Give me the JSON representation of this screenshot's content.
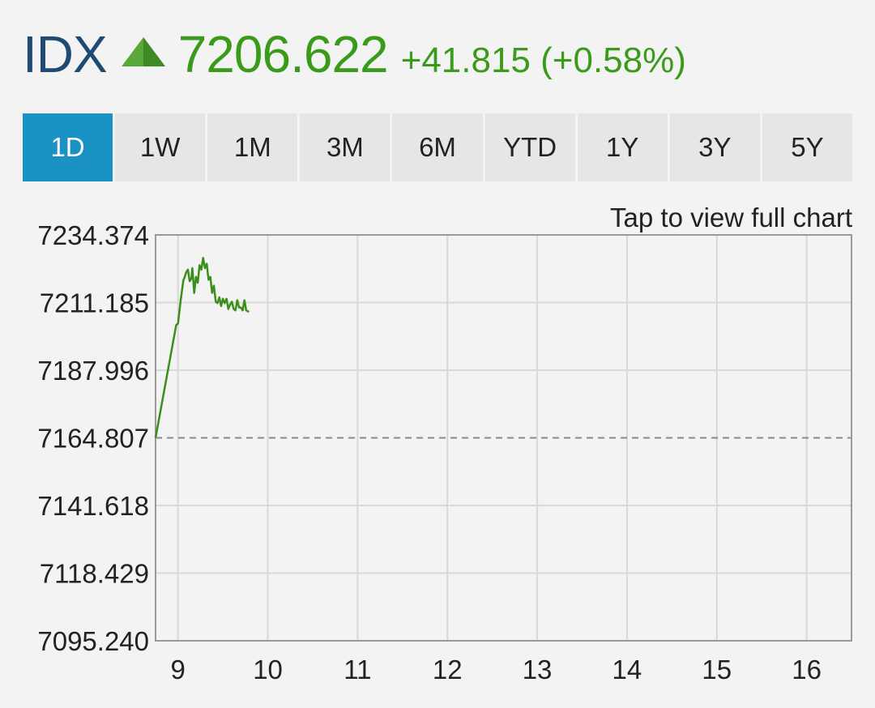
{
  "header": {
    "ticker": "IDX",
    "price": "7206.622",
    "change": "+41.815 (+0.58%)",
    "direction_icon": "triangle-up-icon"
  },
  "colors": {
    "ticker": "#1e4a73",
    "positive": "#3a9a1a",
    "active_tab": "#1a92c4",
    "line": "#3a8f1c"
  },
  "tabs": [
    {
      "label": "1D",
      "active": true
    },
    {
      "label": "1W",
      "active": false
    },
    {
      "label": "1M",
      "active": false
    },
    {
      "label": "3M",
      "active": false
    },
    {
      "label": "6M",
      "active": false
    },
    {
      "label": "YTD",
      "active": false
    },
    {
      "label": "1Y",
      "active": false
    },
    {
      "label": "3Y",
      "active": false
    },
    {
      "label": "5Y",
      "active": false
    }
  ],
  "tap_link": "Tap to view full chart",
  "chart_data": {
    "type": "line",
    "ylim": [
      7095.24,
      7234.374
    ],
    "xlim": [
      8.75,
      16.5
    ],
    "y_ticks": [
      "7234.374",
      "7211.185",
      "7187.996",
      "7164.807",
      "7141.618",
      "7118.429",
      "7095.240"
    ],
    "x_ticks": [
      "9",
      "10",
      "11",
      "12",
      "13",
      "14",
      "15",
      "16"
    ],
    "grid": true,
    "reference_line": 7164.807,
    "series": [
      {
        "x": [
          8.75,
          8.98,
          9.0,
          9.03,
          9.06,
          9.07,
          9.09,
          9.11,
          9.13,
          9.15,
          9.16,
          9.18,
          9.2,
          9.22,
          9.24,
          9.26,
          9.28,
          9.3,
          9.32,
          9.34,
          9.36,
          9.38,
          9.4,
          9.42,
          9.44,
          9.46,
          9.48,
          9.5,
          9.52,
          9.54,
          9.56,
          9.58,
          9.6,
          9.62,
          9.64,
          9.66,
          9.68,
          9.7,
          9.72,
          9.74,
          9.76,
          9.79
        ],
        "y": [
          7164.8,
          7203.5,
          7204.0,
          7212.0,
          7219.0,
          7219.5,
          7221.5,
          7222.5,
          7218.5,
          7219.5,
          7223.0,
          7214.5,
          7220.0,
          7218.0,
          7224.0,
          7222.5,
          7226.5,
          7223.0,
          7224.5,
          7219.0,
          7220.0,
          7214.5,
          7217.0,
          7211.5,
          7211.0,
          7213.0,
          7210.0,
          7212.5,
          7211.0,
          7212.5,
          7209.0,
          7210.5,
          7211.5,
          7209.0,
          7208.5,
          7212.0,
          7209.5,
          7209.5,
          7208.5,
          7212.0,
          7208.5,
          7208.0
        ]
      }
    ]
  }
}
